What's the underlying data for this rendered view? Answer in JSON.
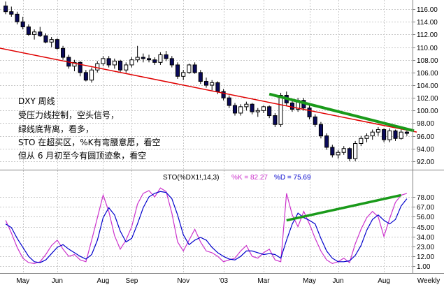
{
  "annotation": {
    "lines": [
      "DXY 周线",
      "受压力线控制，空头信号，",
      "绿线底背离，看多，",
      "STO 在超买区，%K有弯腰意愿，看空",
      "但从 6 月初至今有圆顶迹象，看空"
    ]
  },
  "indicator_header": {
    "name": "STO(%DX1!,14,3)",
    "k_label": "%K = 82.27",
    "d_label": "%D = 75.69"
  },
  "colors": {
    "up_candle": "#ffffff",
    "down_candle": "#0a0a5a",
    "resistance_line": "#e00000",
    "divergence_line": "#1a9a1a",
    "k_line": "#cc33cc",
    "d_line": "#0000cc",
    "grid": "#c8c8c8"
  },
  "chart_data": [
    {
      "type": "candlestick",
      "title": "",
      "x_ticks": [
        "May",
        "Jun",
        "Aug",
        "Sep",
        "Nov",
        "'03",
        "Mar",
        "May",
        "Jun",
        "Aug",
        "Weekly"
      ],
      "y_ticks": [
        92.0,
        94.0,
        96.0,
        98.0,
        100.0,
        102.0,
        104.0,
        106.0,
        108.0,
        110.0,
        112.0,
        114.0,
        116.0
      ],
      "ylim": [
        91.0,
        117.0
      ],
      "candles": [
        [
          116.5,
          117.2,
          115.2,
          115.6
        ],
        [
          115.6,
          116.4,
          114.8,
          115.2
        ],
        [
          115.2,
          115.6,
          113.6,
          114.0
        ],
        [
          114.0,
          114.8,
          112.8,
          113.2
        ],
        [
          113.2,
          113.6,
          111.8,
          112.0
        ],
        [
          112.0,
          112.8,
          111.2,
          112.4
        ],
        [
          112.4,
          113.2,
          111.6,
          111.8
        ],
        [
          111.8,
          112.2,
          110.6,
          110.8
        ],
        [
          110.8,
          111.6,
          110.0,
          111.2
        ],
        [
          111.2,
          111.4,
          109.6,
          109.8
        ],
        [
          109.8,
          110.2,
          108.0,
          108.4
        ],
        [
          108.4,
          108.8,
          106.6,
          107.0
        ],
        [
          107.0,
          108.0,
          106.2,
          107.6
        ],
        [
          107.6,
          107.8,
          105.4,
          106.0
        ],
        [
          106.0,
          106.4,
          104.6,
          104.8
        ],
        [
          104.8,
          106.8,
          104.4,
          106.4
        ],
        [
          106.4,
          107.8,
          106.0,
          107.4
        ],
        [
          107.4,
          108.6,
          107.0,
          108.2
        ],
        [
          108.2,
          108.6,
          106.8,
          107.2
        ],
        [
          107.2,
          108.2,
          106.6,
          107.8
        ],
        [
          107.8,
          108.0,
          106.0,
          106.4
        ],
        [
          106.4,
          107.6,
          106.0,
          107.2
        ],
        [
          107.2,
          108.4,
          106.8,
          108.0
        ],
        [
          108.0,
          110.2,
          107.6,
          108.4
        ],
        [
          108.4,
          109.0,
          107.6,
          108.2
        ],
        [
          108.2,
          108.8,
          107.6,
          108.0
        ],
        [
          108.0,
          108.4,
          107.2,
          107.6
        ],
        [
          107.6,
          109.2,
          107.2,
          108.8
        ],
        [
          108.8,
          109.4,
          107.8,
          108.2
        ],
        [
          108.2,
          108.6,
          106.8,
          107.2
        ],
        [
          107.2,
          107.6,
          105.0,
          105.4
        ],
        [
          105.4,
          106.4,
          104.8,
          106.0
        ],
        [
          106.0,
          107.4,
          105.8,
          107.2
        ],
        [
          107.2,
          107.6,
          105.8,
          106.0
        ],
        [
          106.0,
          106.4,
          104.2,
          104.6
        ],
        [
          104.6,
          105.2,
          103.6,
          104.0
        ],
        [
          104.0,
          104.8,
          103.2,
          104.4
        ],
        [
          104.4,
          104.6,
          102.6,
          103.0
        ],
        [
          103.0,
          103.4,
          101.6,
          102.0
        ],
        [
          102.0,
          102.4,
          100.4,
          100.8
        ],
        [
          100.8,
          101.2,
          99.2,
          99.6
        ],
        [
          99.6,
          101.0,
          99.2,
          100.6
        ],
        [
          100.6,
          101.4,
          100.0,
          101.0
        ],
        [
          101.0,
          101.2,
          99.4,
          99.8
        ],
        [
          99.8,
          100.4,
          99.0,
          100.0
        ],
        [
          100.0,
          100.8,
          99.6,
          100.6
        ],
        [
          100.6,
          100.8,
          98.8,
          99.2
        ],
        [
          99.2,
          99.6,
          97.4,
          97.8
        ],
        [
          97.8,
          102.8,
          97.4,
          102.4
        ],
        [
          102.4,
          103.0,
          100.8,
          101.2
        ],
        [
          101.2,
          101.6,
          99.8,
          100.2
        ],
        [
          100.2,
          102.0,
          99.8,
          101.6
        ],
        [
          101.6,
          102.0,
          100.0,
          100.4
        ],
        [
          100.4,
          100.8,
          98.6,
          99.0
        ],
        [
          99.0,
          99.4,
          97.4,
          97.8
        ],
        [
          97.8,
          98.2,
          95.6,
          96.0
        ],
        [
          96.0,
          96.4,
          93.8,
          94.2
        ],
        [
          94.2,
          94.6,
          92.6,
          93.0
        ],
        [
          93.0,
          93.8,
          92.4,
          93.4
        ],
        [
          93.4,
          94.4,
          93.0,
          94.0
        ],
        [
          94.0,
          94.2,
          92.0,
          92.4
        ],
        [
          92.4,
          95.2,
          92.0,
          94.8
        ],
        [
          94.8,
          96.0,
          94.4,
          95.6
        ],
        [
          95.6,
          96.4,
          95.0,
          96.0
        ],
        [
          96.0,
          97.0,
          95.4,
          96.6
        ],
        [
          96.6,
          97.4,
          96.0,
          97.0
        ],
        [
          97.0,
          97.2,
          95.0,
          95.4
        ],
        [
          95.4,
          97.2,
          95.0,
          96.8
        ],
        [
          96.8,
          97.0,
          95.2,
          95.6
        ],
        [
          95.6,
          97.0,
          95.4,
          96.6
        ],
        [
          96.6,
          96.8,
          96.0,
          96.4
        ]
      ],
      "resistance_line": {
        "from": [
          0,
          109.6
        ],
        "to": [
          70,
          96.8
        ]
      },
      "divergence_line": {
        "from": [
          48,
          102.6
        ],
        "to": [
          70,
          96.8
        ]
      }
    },
    {
      "type": "line",
      "title": "STO(%DX1!,14,3)",
      "y_ticks": [
        1.0,
        12.0,
        23.0,
        34.0,
        45.0,
        56.0,
        67.0,
        78.0
      ],
      "ylim": [
        -5,
        92
      ],
      "series": [
        {
          "name": "%K",
          "values": [
            52,
            38,
            22,
            10,
            5,
            4,
            6,
            14,
            24,
            30,
            20,
            12,
            14,
            8,
            6,
            30,
            55,
            80,
            62,
            35,
            20,
            30,
            45,
            70,
            82,
            85,
            78,
            88,
            84,
            60,
            28,
            18,
            30,
            42,
            28,
            18,
            16,
            12,
            6,
            8,
            10,
            18,
            24,
            12,
            10,
            16,
            20,
            8,
            6,
            82,
            58,
            45,
            62,
            48,
            32,
            18,
            8,
            4,
            6,
            10,
            5,
            26,
            42,
            55,
            62,
            56,
            34,
            54,
            72,
            80,
            82
          ]
        },
        {
          "name": "%D",
          "values": [
            48,
            44,
            32,
            22,
            12,
            6,
            5,
            8,
            15,
            22,
            25,
            20,
            16,
            12,
            9,
            14,
            30,
            55,
            66,
            58,
            40,
            28,
            32,
            48,
            66,
            78,
            82,
            84,
            83,
            76,
            58,
            36,
            25,
            30,
            33,
            30,
            22,
            16,
            12,
            9,
            8,
            12,
            18,
            18,
            16,
            14,
            15,
            14,
            10,
            30,
            48,
            60,
            55,
            52,
            48,
            32,
            18,
            10,
            6,
            6,
            7,
            13,
            24,
            41,
            53,
            58,
            52,
            48,
            53,
            68,
            76
          ]
        }
      ]
    }
  ]
}
